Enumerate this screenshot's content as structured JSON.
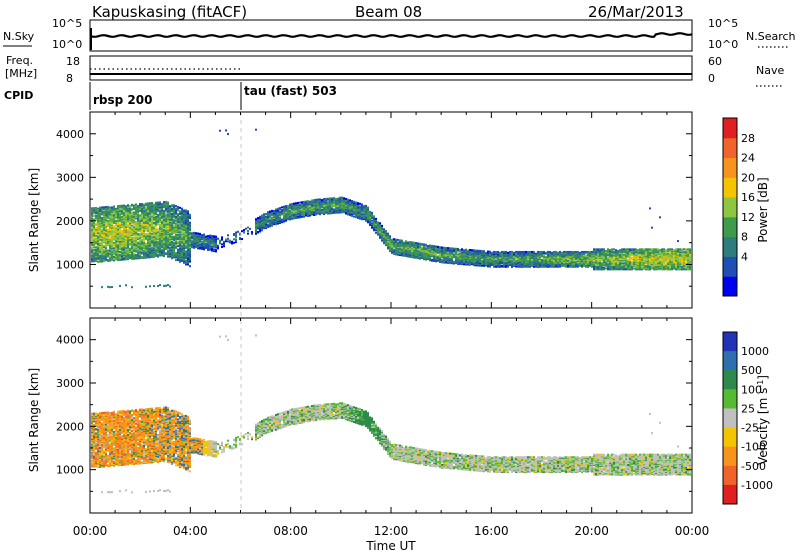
{
  "header": {
    "station": "Kapuskasing (fitACF)",
    "beam": "Beam 08",
    "date": "26/Mar/2013"
  },
  "noise_panel": {
    "left_label": "N.Sky",
    "right_label": "N.Search",
    "left_ticks": [
      "10^5",
      "10^0"
    ],
    "right_ticks": [
      "10^5",
      "10^0"
    ]
  },
  "freq_panel": {
    "left_label_1": "Freq.",
    "left_label_2": "[MHz]",
    "right_label": "Nave",
    "left_ticks": [
      "18",
      "8"
    ],
    "right_ticks": [
      "60",
      "0"
    ]
  },
  "cpid": {
    "label": "CPID",
    "segments": [
      {
        "name": "rbsp 200",
        "start_hour": 0.0
      },
      {
        "name": "tau (fast) 503",
        "start_hour": 6.0
      }
    ]
  },
  "x_axis": {
    "label": "Time UT",
    "ticks": [
      "00:00",
      "04:00",
      "08:00",
      "12:00",
      "16:00",
      "20:00",
      "00:00"
    ],
    "range_hours": [
      0,
      24
    ]
  },
  "power_panel": {
    "ylabel": "Slant Range [km]",
    "yticks": [
      "4000",
      "3000",
      "2000",
      "1000"
    ],
    "colorbar_label": "Power [dB]",
    "colorbar_ticks": [
      "28",
      "24",
      "20",
      "16",
      "12",
      "8",
      "4"
    ],
    "colors": [
      "#0000f0",
      "#1f4fb5",
      "#2e7d7d",
      "#3e9b4a",
      "#8dc63f",
      "#f5c400",
      "#f7941d",
      "#f0642c",
      "#e02020"
    ]
  },
  "velocity_panel": {
    "ylabel": "Slant Range [km]",
    "yticks": [
      "4000",
      "3000",
      "2000",
      "1000"
    ],
    "colorbar_label": "Velocity [m s^-1]",
    "colorbar_ticks": [
      "1000",
      "500",
      "100",
      "25",
      "-25",
      "-100",
      "-500",
      "-1000"
    ],
    "colors": [
      "#2233b8",
      "#2e6fb0",
      "#2e8a4a",
      "#55bb33",
      "#c0c0c0",
      "#f5c400",
      "#f7941d",
      "#f0642c",
      "#e02020"
    ]
  },
  "chart_data": {
    "type": "heatmap",
    "x": [
      0,
      1,
      2,
      3,
      4,
      5,
      6,
      7,
      8,
      9,
      10,
      11,
      12,
      13,
      14,
      15,
      16,
      17,
      18,
      19,
      20,
      21,
      22,
      23,
      24
    ],
    "series": [
      {
        "name": "backscatter_center_range_km",
        "values": [
          1700,
          1750,
          1800,
          1850,
          1600,
          1500,
          1700,
          2050,
          2250,
          2350,
          2400,
          2200,
          1450,
          1350,
          1250,
          1200,
          1150,
          1150,
          1150,
          1150,
          1150,
          1150,
          1150,
          1150,
          1150
        ]
      },
      {
        "name": "power_dB",
        "values": [
          18,
          20,
          19,
          17,
          14,
          10,
          10,
          12,
          14,
          15,
          14,
          13,
          16,
          16,
          15,
          14,
          14,
          14,
          15,
          16,
          17,
          18,
          20,
          21,
          20
        ]
      },
      {
        "name": "velocity_ms",
        "values": [
          -200,
          -300,
          -250,
          -150,
          -100,
          0,
          0,
          0,
          0,
          0,
          0,
          50,
          0,
          0,
          0,
          0,
          0,
          0,
          0,
          0,
          0,
          0,
          0,
          0,
          0
        ]
      }
    ],
    "xlim": [
      0,
      24
    ],
    "ylim": [
      0,
      4500
    ]
  }
}
